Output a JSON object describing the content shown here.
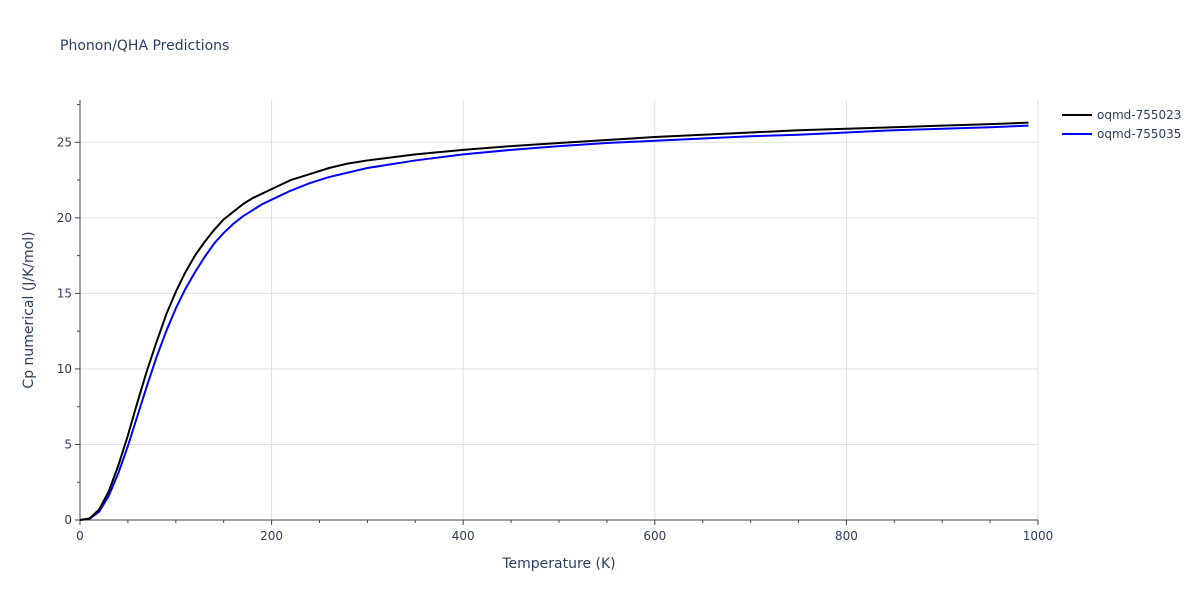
{
  "chart_data": {
    "type": "line",
    "title": "Phonon/QHA Predictions",
    "xlabel": "Temperature (K)",
    "ylabel": "Cp numerical (J/K/mol)",
    "xlim": [
      0,
      1000
    ],
    "ylim": [
      0,
      27.8
    ],
    "x_ticks": [
      0,
      200,
      400,
      600,
      800,
      1000
    ],
    "y_ticks": [
      0,
      5,
      10,
      15,
      20,
      25
    ],
    "grid": true,
    "legend_position": "top-right",
    "series": [
      {
        "name": "oqmd-755023",
        "color": "#000000",
        "x": [
          0,
          10,
          20,
          30,
          40,
          50,
          60,
          70,
          80,
          90,
          100,
          110,
          120,
          130,
          140,
          150,
          160,
          170,
          180,
          190,
          200,
          220,
          240,
          260,
          280,
          300,
          350,
          400,
          450,
          500,
          550,
          600,
          650,
          700,
          750,
          800,
          850,
          900,
          950,
          990
        ],
        "y": [
          0,
          0.1,
          0.7,
          1.9,
          3.6,
          5.6,
          7.8,
          9.9,
          11.8,
          13.6,
          15.1,
          16.4,
          17.5,
          18.4,
          19.2,
          19.9,
          20.4,
          20.9,
          21.3,
          21.6,
          21.9,
          22.5,
          22.9,
          23.3,
          23.6,
          23.8,
          24.2,
          24.5,
          24.75,
          24.95,
          25.15,
          25.35,
          25.5,
          25.65,
          25.8,
          25.9,
          26.0,
          26.1,
          26.2,
          26.3
        ]
      },
      {
        "name": "oqmd-755035",
        "color": "#0000ff",
        "x": [
          0,
          10,
          20,
          30,
          40,
          50,
          60,
          70,
          80,
          90,
          100,
          110,
          120,
          130,
          140,
          150,
          160,
          170,
          180,
          190,
          200,
          220,
          240,
          260,
          280,
          300,
          350,
          400,
          450,
          500,
          550,
          600,
          650,
          700,
          750,
          800,
          850,
          900,
          950,
          990
        ],
        "y": [
          0,
          0.08,
          0.55,
          1.6,
          3.1,
          4.9,
          6.9,
          8.9,
          10.8,
          12.5,
          14.0,
          15.3,
          16.4,
          17.4,
          18.3,
          19.0,
          19.6,
          20.1,
          20.5,
          20.9,
          21.2,
          21.8,
          22.3,
          22.7,
          23.0,
          23.3,
          23.8,
          24.2,
          24.5,
          24.75,
          24.95,
          25.1,
          25.25,
          25.4,
          25.5,
          25.65,
          25.8,
          25.9,
          26.0,
          26.1
        ]
      }
    ]
  }
}
